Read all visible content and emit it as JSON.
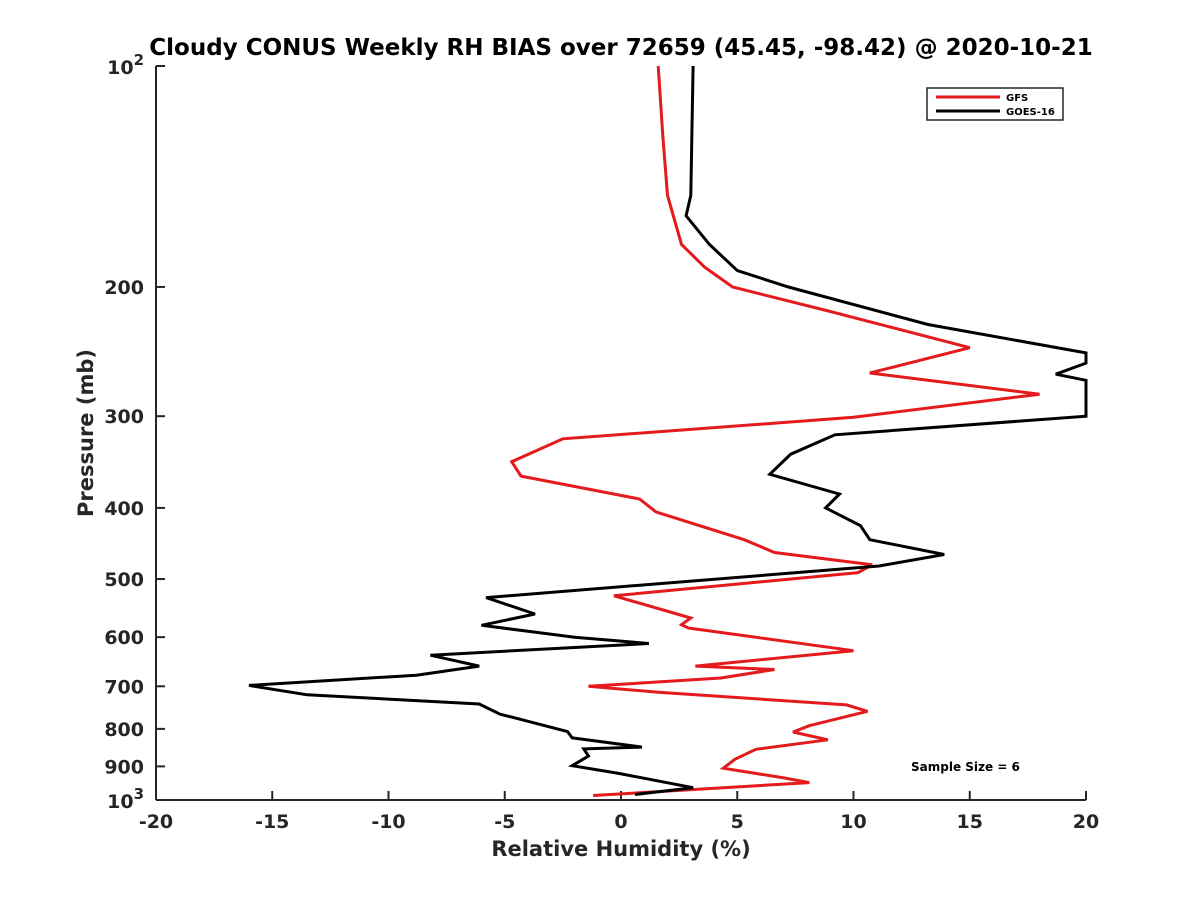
{
  "chart_data": {
    "type": "line",
    "title": "Cloudy CONUS Weekly RH BIAS over 72659 (45.45, -98.42) @ 2020-10-21",
    "xlabel": "Relative Humidity (%)",
    "ylabel": "Pressure (mb)",
    "xlim": [
      -20,
      20
    ],
    "ylim": [
      100,
      1000
    ],
    "y_scale": "log",
    "y_reversed": true,
    "grid": false,
    "x_ticks": [
      "-20",
      "-15",
      "-10",
      "-5",
      "0",
      "5",
      "10",
      "15",
      "20"
    ],
    "y_ticks": [
      {
        "value": 100,
        "base": "10",
        "exp": "2"
      },
      {
        "value": 200,
        "label": "200"
      },
      {
        "value": 300,
        "label": "300"
      },
      {
        "value": 400,
        "label": "400"
      },
      {
        "value": 500,
        "label": "500"
      },
      {
        "value": 600,
        "label": "600"
      },
      {
        "value": 700,
        "label": "700"
      },
      {
        "value": 800,
        "label": "800"
      },
      {
        "value": 900,
        "label": "900"
      },
      {
        "value": 1000,
        "base": "10",
        "exp": "3"
      }
    ],
    "legend_position": "top-right",
    "annotation": "Sample Size = 6",
    "series": [
      {
        "name": "GFS",
        "color": "#e41a1c",
        "points": [
          [
            1.6,
            100
          ],
          [
            1.8,
            125
          ],
          [
            2.0,
            150
          ],
          [
            2.6,
            175
          ],
          [
            3.6,
            188
          ],
          [
            4.8,
            200
          ],
          [
            9.0,
            216
          ],
          [
            15.0,
            242
          ],
          [
            10.7,
            262
          ],
          [
            18.0,
            280
          ],
          [
            10.0,
            301
          ],
          [
            -2.5,
            322
          ],
          [
            -4.7,
            346
          ],
          [
            -4.3,
            362
          ],
          [
            0.8,
            389
          ],
          [
            1.5,
            405
          ],
          [
            5.3,
            442
          ],
          [
            6.6,
            460
          ],
          [
            10.8,
            478
          ],
          [
            10.2,
            490
          ],
          [
            -0.3,
            527
          ],
          [
            3.0,
            565
          ],
          [
            2.6,
            577
          ],
          [
            2.9,
            583
          ],
          [
            10.0,
            626
          ],
          [
            3.2,
            657
          ],
          [
            6.6,
            664
          ],
          [
            4.3,
            682
          ],
          [
            -1.4,
            700
          ],
          [
            1.6,
            713
          ],
          [
            9.7,
            742
          ],
          [
            10.6,
            757
          ],
          [
            8.1,
            792
          ],
          [
            7.4,
            808
          ],
          [
            8.9,
            828
          ],
          [
            5.8,
            853
          ],
          [
            4.9,
            880
          ],
          [
            4.4,
            905
          ],
          [
            7.0,
            933
          ],
          [
            8.1,
            947
          ],
          [
            -1.2,
            986
          ]
        ]
      },
      {
        "name": "GOES-16",
        "color": "#000000",
        "points": [
          [
            3.1,
            100
          ],
          [
            3.0,
            150
          ],
          [
            2.8,
            160
          ],
          [
            3.8,
            175
          ],
          [
            5.0,
            190
          ],
          [
            7.2,
            200
          ],
          [
            13.2,
            225
          ],
          [
            20.0,
            246
          ],
          [
            20.0,
            254
          ],
          [
            18.7,
            263
          ],
          [
            20.0,
            268
          ],
          [
            20.0,
            300
          ],
          [
            9.2,
            318
          ],
          [
            7.3,
            338
          ],
          [
            6.4,
            360
          ],
          [
            9.4,
            383
          ],
          [
            8.8,
            400
          ],
          [
            10.3,
            423
          ],
          [
            10.7,
            442
          ],
          [
            13.9,
            463
          ],
          [
            11.1,
            480
          ],
          [
            -5.8,
            530
          ],
          [
            -3.7,
            558
          ],
          [
            -6.0,
            578
          ],
          [
            -2.0,
            600
          ],
          [
            1.2,
            612
          ],
          [
            -8.2,
            635
          ],
          [
            -6.1,
            657
          ],
          [
            -8.8,
            676
          ],
          [
            -16.0,
            698
          ],
          [
            -13.5,
            719
          ],
          [
            -6.1,
            740
          ],
          [
            -5.2,
            764
          ],
          [
            -4.7,
            771
          ],
          [
            -2.3,
            807
          ],
          [
            -2.1,
            823
          ],
          [
            0.9,
            847
          ],
          [
            -1.6,
            852
          ],
          [
            -1.4,
            871
          ],
          [
            -2.1,
            898
          ],
          [
            -0.1,
            920
          ],
          [
            3.1,
            962
          ],
          [
            0.6,
            983
          ]
        ]
      }
    ]
  }
}
